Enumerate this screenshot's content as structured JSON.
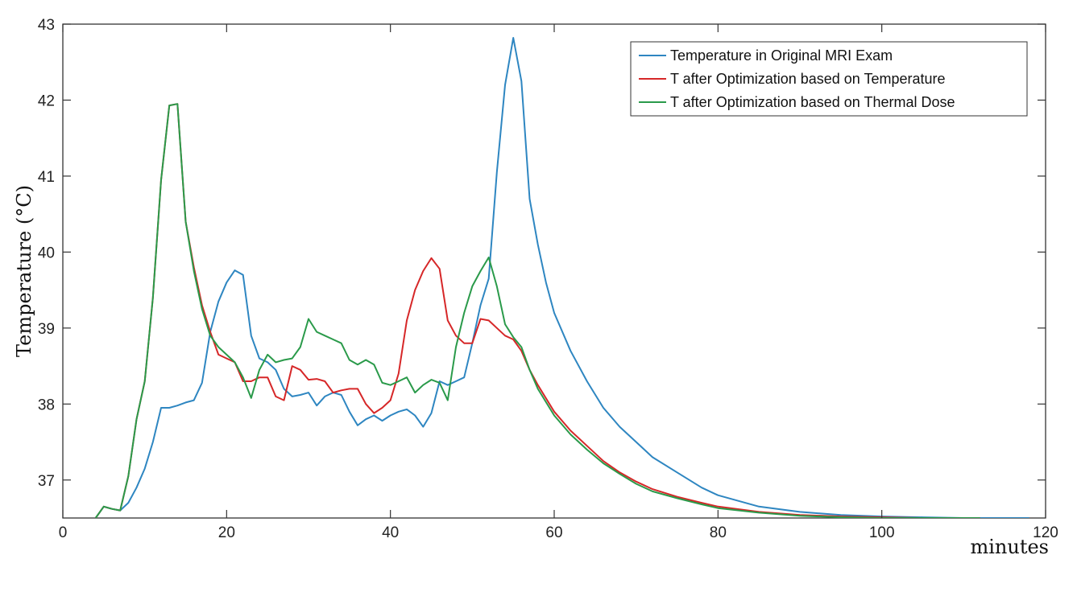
{
  "chart_data": {
    "type": "line",
    "xlabel": "minutes",
    "ylabel": "Temperature (°C)",
    "xlim": [
      0,
      120
    ],
    "ylim": [
      36.5,
      43
    ],
    "x_ticks": [
      0,
      20,
      40,
      60,
      80,
      100,
      120
    ],
    "x_tick_labels": [
      "0",
      "20",
      "40",
      "60",
      "80",
      "100",
      "120"
    ],
    "y_ticks": [
      37,
      38,
      39,
      40,
      41,
      42,
      43
    ],
    "y_tick_labels": [
      "37",
      "38",
      "39",
      "40",
      "41",
      "42",
      "43"
    ],
    "grid": false,
    "legend_position": "top-right",
    "colors": {
      "original": "#2e86c1",
      "temperature_opt": "#d62728",
      "dose_opt": "#2a9a4a"
    },
    "series": [
      {
        "name": "Temperature in Original MRI Exam",
        "color_key": "original",
        "x": [
          4,
          5,
          6,
          7,
          8,
          9,
          10,
          11,
          12,
          13,
          14,
          15,
          16,
          17,
          18,
          19,
          20,
          21,
          22,
          23,
          24,
          25,
          26,
          27,
          28,
          29,
          30,
          31,
          32,
          33,
          34,
          35,
          36,
          37,
          38,
          39,
          40,
          41,
          42,
          43,
          44,
          45,
          46,
          47,
          48,
          49,
          50,
          51,
          52,
          53,
          54,
          55,
          56,
          57,
          58,
          59,
          60,
          62,
          64,
          66,
          68,
          70,
          72,
          75,
          78,
          80,
          85,
          90,
          95,
          100,
          105,
          110,
          118
        ],
        "y": [
          36.5,
          36.65,
          36.62,
          36.6,
          36.7,
          36.9,
          37.15,
          37.5,
          37.95,
          37.95,
          37.98,
          38.02,
          38.05,
          38.28,
          38.95,
          39.35,
          39.6,
          39.76,
          39.7,
          38.9,
          38.6,
          38.55,
          38.45,
          38.2,
          38.1,
          38.12,
          38.15,
          37.98,
          38.1,
          38.15,
          38.12,
          37.9,
          37.72,
          37.8,
          37.85,
          37.78,
          37.85,
          37.9,
          37.93,
          37.85,
          37.7,
          37.88,
          38.3,
          38.25,
          38.3,
          38.35,
          38.8,
          39.3,
          39.65,
          41.05,
          42.2,
          42.82,
          42.25,
          40.7,
          40.1,
          39.6,
          39.2,
          38.7,
          38.3,
          37.95,
          37.7,
          37.5,
          37.3,
          37.1,
          36.9,
          36.8,
          36.65,
          36.58,
          36.54,
          36.52,
          36.51,
          36.5,
          36.5
        ]
      },
      {
        "name": "T after Optimization based on Temperature",
        "color_key": "temperature_opt",
        "x": [
          4,
          5,
          6,
          7,
          8,
          9,
          10,
          11,
          12,
          13,
          14,
          15,
          16,
          17,
          18,
          19,
          20,
          21,
          22,
          23,
          24,
          25,
          26,
          27,
          28,
          29,
          30,
          31,
          32,
          33,
          34,
          35,
          36,
          37,
          38,
          39,
          40,
          41,
          42,
          43,
          44,
          45,
          46,
          47,
          48,
          49,
          50,
          51,
          52,
          53,
          54,
          55,
          56,
          57,
          58,
          60,
          62,
          64,
          66,
          68,
          70,
          72,
          75,
          78,
          80,
          85,
          90,
          95,
          100,
          105,
          112
        ],
        "y": [
          36.5,
          36.65,
          36.62,
          36.6,
          37.05,
          37.8,
          38.3,
          39.4,
          40.95,
          41.93,
          41.95,
          40.4,
          39.8,
          39.3,
          38.95,
          38.65,
          38.6,
          38.55,
          38.3,
          38.3,
          38.35,
          38.35,
          38.1,
          38.05,
          38.5,
          38.45,
          38.32,
          38.33,
          38.3,
          38.15,
          38.18,
          38.2,
          38.2,
          38.0,
          37.88,
          37.95,
          38.05,
          38.4,
          39.1,
          39.5,
          39.75,
          39.92,
          39.78,
          39.1,
          38.9,
          38.8,
          38.8,
          39.12,
          39.1,
          39.0,
          38.9,
          38.85,
          38.7,
          38.45,
          38.25,
          37.9,
          37.65,
          37.45,
          37.25,
          37.1,
          36.98,
          36.88,
          36.78,
          36.7,
          36.65,
          36.58,
          36.54,
          36.52,
          36.51,
          36.5,
          36.5
        ]
      },
      {
        "name": "T after Optimization based on Thermal Dose",
        "color_key": "dose_opt",
        "x": [
          4,
          5,
          6,
          7,
          8,
          9,
          10,
          11,
          12,
          13,
          14,
          15,
          16,
          17,
          18,
          19,
          20,
          21,
          22,
          23,
          24,
          25,
          26,
          27,
          28,
          29,
          30,
          31,
          32,
          33,
          34,
          35,
          36,
          37,
          38,
          39,
          40,
          41,
          42,
          43,
          44,
          45,
          46,
          47,
          48,
          49,
          50,
          51,
          52,
          53,
          54,
          55,
          56,
          57,
          58,
          60,
          62,
          64,
          66,
          68,
          70,
          72,
          75,
          78,
          80,
          85,
          90,
          95,
          100,
          105,
          112
        ],
        "y": [
          36.5,
          36.65,
          36.62,
          36.6,
          37.05,
          37.8,
          38.3,
          39.4,
          40.95,
          41.93,
          41.95,
          40.4,
          39.75,
          39.25,
          38.9,
          38.75,
          38.65,
          38.55,
          38.35,
          38.08,
          38.45,
          38.65,
          38.55,
          38.58,
          38.6,
          38.75,
          39.12,
          38.95,
          38.9,
          38.85,
          38.8,
          38.58,
          38.52,
          38.58,
          38.52,
          38.28,
          38.25,
          38.3,
          38.35,
          38.15,
          38.25,
          38.32,
          38.28,
          38.05,
          38.75,
          39.2,
          39.55,
          39.75,
          39.93,
          39.55,
          39.05,
          38.88,
          38.75,
          38.45,
          38.2,
          37.85,
          37.6,
          37.4,
          37.22,
          37.08,
          36.95,
          36.85,
          36.76,
          36.68,
          36.63,
          36.57,
          36.53,
          36.51,
          36.5,
          36.5,
          36.5
        ]
      }
    ]
  }
}
